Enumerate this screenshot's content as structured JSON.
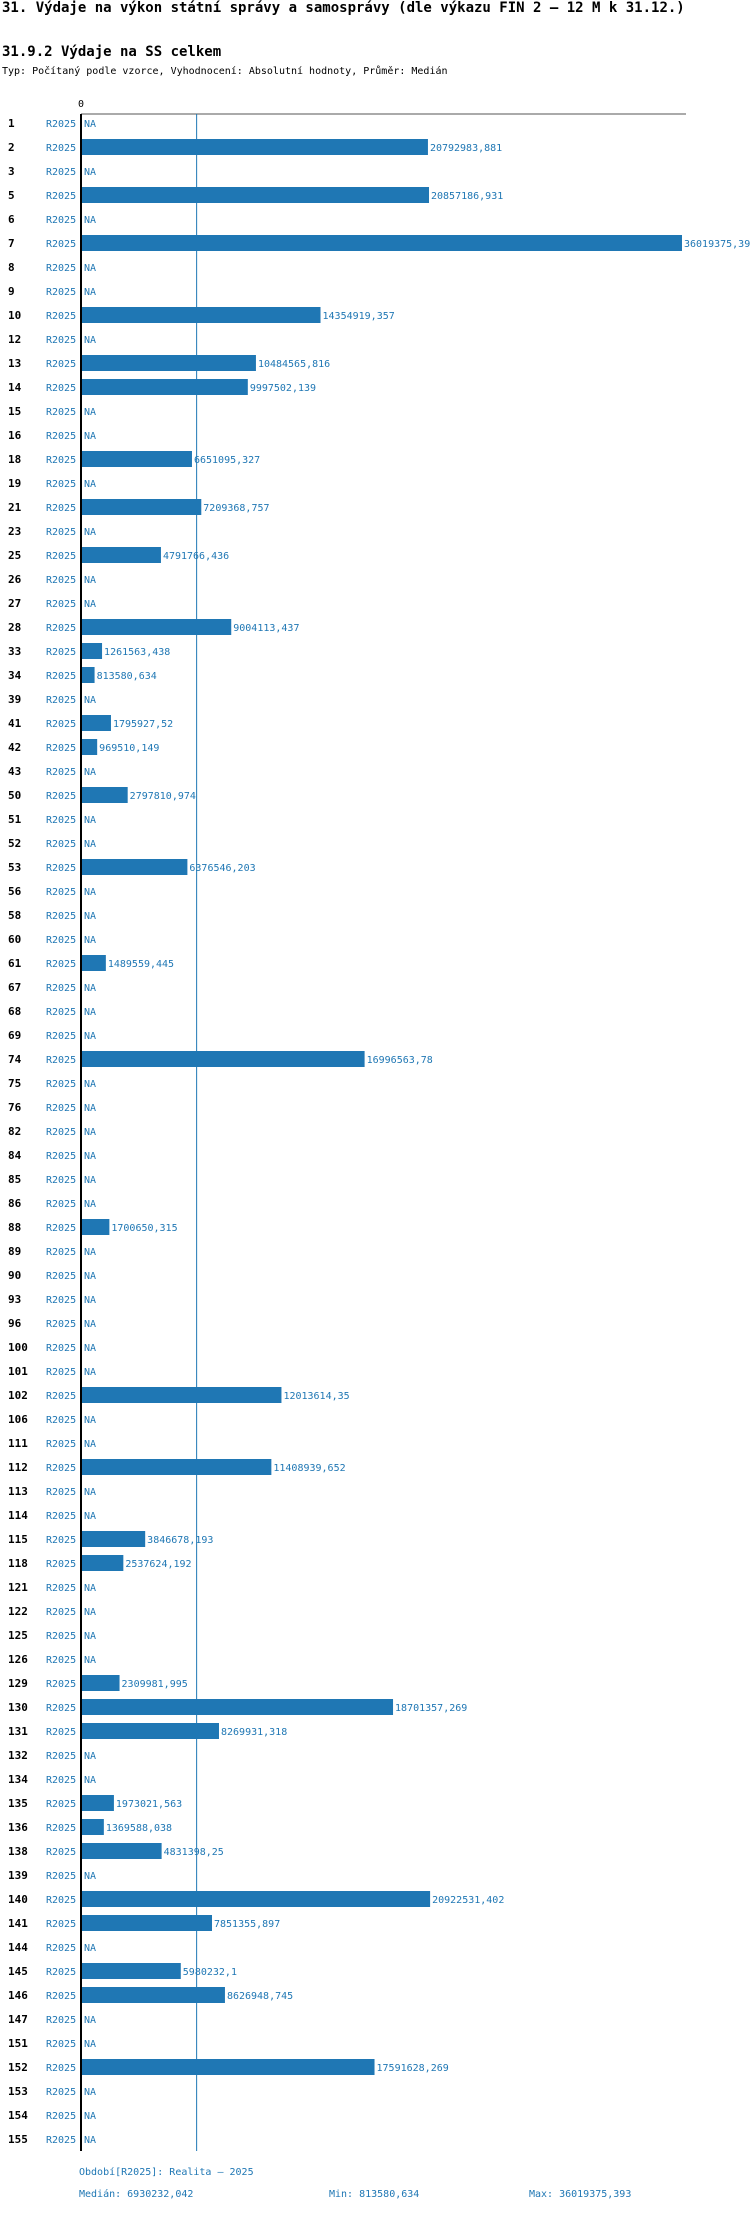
{
  "chart_data": {
    "type": "bar",
    "orientation": "horizontal",
    "title": "31. Výdaje na výkon státní správy a samosprávy (dle výkazu FIN 2 – 12 M k 31.12.)",
    "subtitle": "31.9.2 Výdaje na SS celkem",
    "description": "Typ: Počítaný podle vzorce, Vyhodnocení: Absolutní hodnoty, Průměr: Medián",
    "series_name": "R2025",
    "na_label": "NA",
    "axis_zero_label": "0",
    "color": "#1f77b4",
    "xlim": [
      0,
      36019375.393
    ],
    "median": 6930232.042,
    "categories": [
      "1",
      "2",
      "3",
      "5",
      "6",
      "7",
      "8",
      "9",
      "10",
      "12",
      "13",
      "14",
      "15",
      "16",
      "18",
      "19",
      "21",
      "23",
      "25",
      "26",
      "27",
      "28",
      "33",
      "34",
      "39",
      "41",
      "42",
      "43",
      "50",
      "51",
      "52",
      "53",
      "56",
      "58",
      "60",
      "61",
      "67",
      "68",
      "69",
      "74",
      "75",
      "76",
      "82",
      "84",
      "85",
      "86",
      "88",
      "89",
      "90",
      "93",
      "96",
      "100",
      "101",
      "102",
      "106",
      "111",
      "112",
      "113",
      "114",
      "115",
      "118",
      "121",
      "122",
      "125",
      "126",
      "129",
      "130",
      "131",
      "132",
      "134",
      "135",
      "136",
      "138",
      "139",
      "140",
      "141",
      "144",
      "145",
      "146",
      "147",
      "151",
      "152",
      "153",
      "154",
      "155"
    ],
    "values": [
      null,
      20792983.881,
      null,
      20857186.931,
      null,
      36019375.393,
      null,
      null,
      14354919.357,
      null,
      10484565.816,
      9997502.139,
      null,
      null,
      6651095.327,
      null,
      7209368.757,
      null,
      4791766.436,
      null,
      null,
      9004113.437,
      1261563.438,
      813580.634,
      null,
      1795927.52,
      969510.149,
      null,
      2797810.974,
      null,
      null,
      6376546.203,
      null,
      null,
      null,
      1489559.445,
      null,
      null,
      null,
      16996563.78,
      null,
      null,
      null,
      null,
      null,
      null,
      1700650.315,
      null,
      null,
      null,
      null,
      null,
      null,
      12013614.35,
      null,
      null,
      11408939.652,
      null,
      null,
      3846678.193,
      2537624.192,
      null,
      null,
      null,
      null,
      2309981.995,
      18701357.269,
      8269931.318,
      null,
      null,
      1973021.563,
      1369588.038,
      4831398.25,
      null,
      20922531.402,
      7851355.897,
      null,
      5980232.1,
      8626948.745,
      null,
      null,
      17591628.269,
      null,
      null,
      null
    ],
    "value_labels": [
      "",
      "20792983,881",
      "",
      "20857186,931",
      "",
      "36019375,393",
      "",
      "",
      "14354919,357",
      "",
      "10484565,816",
      "9997502,139",
      "",
      "",
      "6651095,327",
      "",
      "7209368,757",
      "",
      "4791766,436",
      "",
      "",
      "9004113,437",
      "1261563,438",
      "813580,634",
      "",
      "1795927,52",
      "969510,149",
      "",
      "2797810,974",
      "",
      "",
      "6376546,203",
      "",
      "",
      "",
      "1489559,445",
      "",
      "",
      "",
      "16996563,78",
      "",
      "",
      "",
      "",
      "",
      "",
      "1700650,315",
      "",
      "",
      "",
      "",
      "",
      "",
      "12013614,35",
      "",
      "",
      "11408939,652",
      "",
      "",
      "3846678,193",
      "2537624,192",
      "",
      "",
      "",
      "",
      "2309981,995",
      "18701357,269",
      "8269931,318",
      "",
      "",
      "1973021,563",
      "1369588,038",
      "4831398,25",
      "",
      "20922531,402",
      "7851355,897",
      "",
      "5980232,1",
      "8626948,745",
      "",
      "",
      "17591628,269",
      "",
      "",
      ""
    ]
  },
  "footer": {
    "period": "Období[R2025]: Realita – 2025",
    "median": "Medián: 6930232,042",
    "min": "Min: 813580,634",
    "max": "Max: 36019375,393"
  }
}
